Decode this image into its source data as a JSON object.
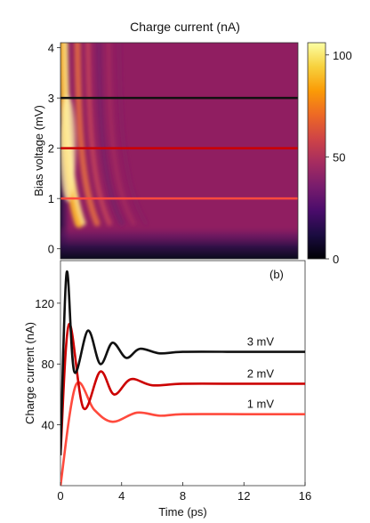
{
  "chart_data": [
    {
      "type": "heatmap",
      "title": "Charge current (nA)",
      "xlabel": "",
      "ylabel": "Bias voltage (mV)",
      "xlim": [
        0,
        16
      ],
      "ylim": [
        -0.2,
        4.1
      ],
      "yticks": [
        "0",
        "1",
        "2",
        "3",
        "4"
      ],
      "colorbar": {
        "range": [
          0,
          106
        ],
        "ticks": [
          "0",
          "50",
          "100"
        ],
        "colormap": "inferno"
      },
      "cuts": [
        {
          "bias_mV": 1,
          "color": "#ff4a3d"
        },
        {
          "bias_mV": 2,
          "color": "#cc0000"
        },
        {
          "bias_mV": 3,
          "color": "#111111"
        }
      ]
    },
    {
      "type": "line",
      "panel_label": "(b)",
      "xlabel": "Time (ps)",
      "ylabel": "Charge current (nA)",
      "xlim": [
        0,
        16
      ],
      "ylim": [
        0,
        148
      ],
      "xticks": [
        "0",
        "4",
        "8",
        "12",
        "16"
      ],
      "yticks": [
        "40",
        "80",
        "120"
      ],
      "series": [
        {
          "name": "3 mV",
          "color": "#111111",
          "steady": 88,
          "peak": 140,
          "t_peak": 0.4,
          "x": [
            0,
            0.4,
            0.9,
            1.8,
            2.6,
            3.4,
            4.3,
            5.2,
            6.5,
            8,
            12,
            16
          ],
          "values": [
            20,
            140,
            75,
            102,
            80,
            94,
            84,
            90,
            87,
            88,
            88,
            88
          ]
        },
        {
          "name": "2 mV",
          "color": "#cc0000",
          "steady": 67,
          "peak": 106,
          "t_peak": 0.55,
          "x": [
            0,
            0.55,
            1.5,
            2.6,
            3.5,
            4.6,
            6,
            8,
            12,
            16
          ],
          "values": [
            20,
            106,
            51,
            75,
            60,
            70,
            66,
            67,
            67,
            67
          ]
        },
        {
          "name": "1 mV",
          "color": "#ff4a3d",
          "steady": 47,
          "peak": 66,
          "t_peak": 1.0,
          "x": [
            0,
            1.0,
            2.2,
            3.4,
            5.0,
            6.5,
            8,
            12,
            16
          ],
          "values": [
            0,
            66,
            50,
            42,
            48,
            46,
            47,
            47,
            47
          ]
        }
      ]
    }
  ]
}
